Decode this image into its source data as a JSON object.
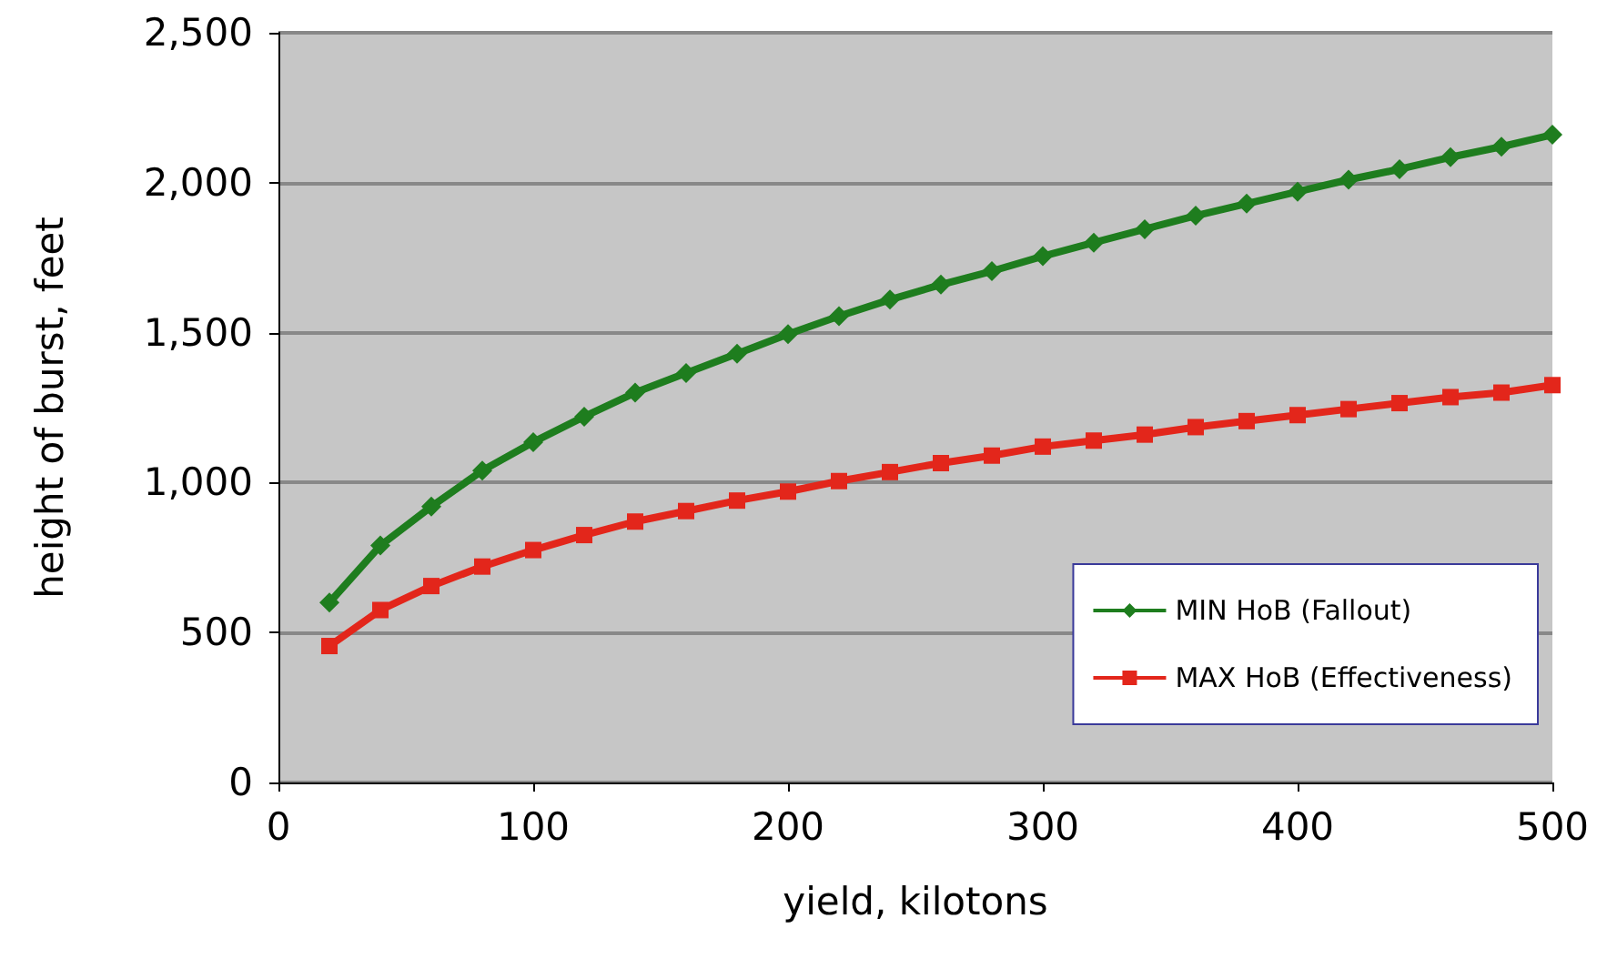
{
  "chart_data": {
    "type": "line",
    "xlabel": "yield, kilotons",
    "ylabel": "height of burst, feet",
    "x": [
      20,
      40,
      60,
      80,
      100,
      120,
      140,
      160,
      180,
      200,
      220,
      240,
      260,
      280,
      300,
      320,
      340,
      360,
      380,
      400,
      420,
      440,
      460,
      480,
      500
    ],
    "series": [
      {
        "name": "MIN HoB (Fallout)",
        "color": "#1e7d1e",
        "marker": "diamond",
        "values": [
          600,
          790,
          920,
          1040,
          1135,
          1220,
          1300,
          1365,
          1430,
          1495,
          1555,
          1610,
          1660,
          1705,
          1755,
          1800,
          1845,
          1890,
          1930,
          1970,
          2010,
          2045,
          2085,
          2120,
          2160
        ]
      },
      {
        "name": "MAX HoB (Effectiveness)",
        "color": "#e3261b",
        "marker": "square",
        "values": [
          455,
          575,
          655,
          720,
          775,
          825,
          870,
          905,
          940,
          970,
          1005,
          1035,
          1065,
          1090,
          1120,
          1140,
          1160,
          1185,
          1205,
          1225,
          1245,
          1265,
          1285,
          1300,
          1325
        ]
      }
    ],
    "xlim": [
      0,
      500
    ],
    "xticks": [
      0,
      100,
      200,
      300,
      400,
      500
    ],
    "ylim": [
      0,
      2500
    ],
    "yticks": [
      0,
      500,
      {
        "value": 1000,
        "label": "1,000"
      },
      {
        "value": 1500,
        "label": "1,500"
      },
      {
        "value": 2000,
        "label": "2,000"
      },
      {
        "value": 2500,
        "label": "2,500"
      }
    ],
    "grid": "y",
    "legend": "bottom right",
    "line_style": "solid"
  }
}
